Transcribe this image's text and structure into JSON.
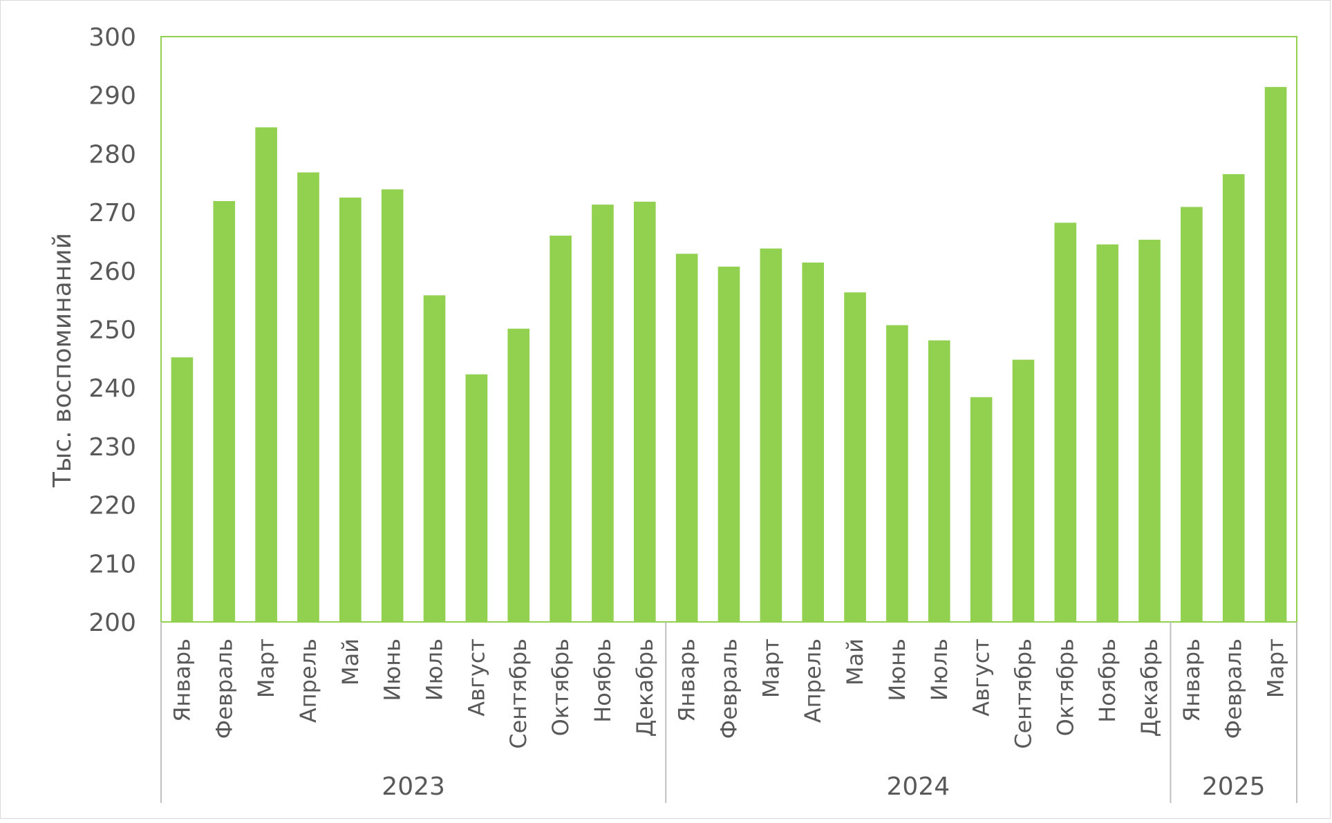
{
  "chart_data": {
    "type": "bar",
    "title": "",
    "xlabel": "",
    "ylabel": "Тыс. воспоминаний",
    "ylim": [
      200,
      300
    ],
    "yticks": [
      200,
      210,
      220,
      230,
      240,
      250,
      260,
      270,
      280,
      290,
      300
    ],
    "grid": false,
    "legend": "none",
    "bar_color": "#92d050",
    "plot_border_color": "#92d050",
    "axis_color": "#bfbfbf",
    "text_color": "#595959",
    "groups": [
      {
        "label": "2023",
        "categories": [
          "Январь",
          "Февраль",
          "Март",
          "Апрель",
          "Май",
          "Июнь",
          "Июль",
          "Август",
          "Сентябрь",
          "Октябрь",
          "Ноябрь",
          "Декабрь"
        ],
        "values": [
          245.2,
          271.9,
          284.5,
          276.8,
          272.5,
          273.9,
          255.8,
          242.3,
          250.1,
          266.0,
          271.3,
          271.8
        ]
      },
      {
        "label": "2024",
        "categories": [
          "Январь",
          "Февраль",
          "Март",
          "Апрель",
          "Май",
          "Июнь",
          "Июль",
          "Август",
          "Сентябрь",
          "Октябрь",
          "Ноябрь",
          "Декабрь"
        ],
        "values": [
          262.9,
          260.7,
          263.8,
          261.4,
          256.3,
          250.7,
          248.1,
          238.4,
          244.8,
          268.2,
          264.5,
          265.3
        ]
      },
      {
        "label": "2025",
        "categories": [
          "Январь",
          "Февраль",
          "Март"
        ],
        "values": [
          270.9,
          276.5,
          291.4
        ]
      }
    ]
  }
}
